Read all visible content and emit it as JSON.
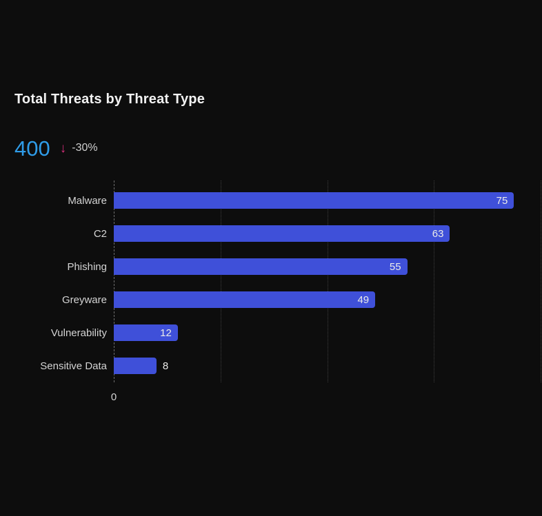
{
  "title": "Total Threats by Threat Type",
  "metric": {
    "value": "400",
    "trend_icon": "↓",
    "trend_text": "-30%"
  },
  "chart_data": {
    "type": "bar",
    "orientation": "horizontal",
    "title": "Total Threats by Threat Type",
    "categories": [
      "Malware",
      "C2",
      "Phishing",
      "Greyware",
      "Vulnerability",
      "Sensitive Data"
    ],
    "values": [
      75,
      63,
      55,
      49,
      12,
      8
    ],
    "xlim": [
      0,
      80
    ],
    "x_ticks": [
      0,
      20,
      40,
      60,
      80
    ],
    "x_tick_label_shown": "0",
    "grid": "vertical-dotted",
    "legend": "none",
    "value_labels": "end-of-bar"
  },
  "colors": {
    "background": "#0d0d0d",
    "bar": "#3f50d9",
    "title-text": "#f2f2f2",
    "label-text": "#d4d4d4",
    "value-text": "#ecece9",
    "metric-blue": "#2f9ce8",
    "trend-pink": "#d62e7a",
    "trend-text": "#cfcfcf",
    "gridline": "#3e3e3e",
    "axis-line": "#6f6f6f"
  }
}
